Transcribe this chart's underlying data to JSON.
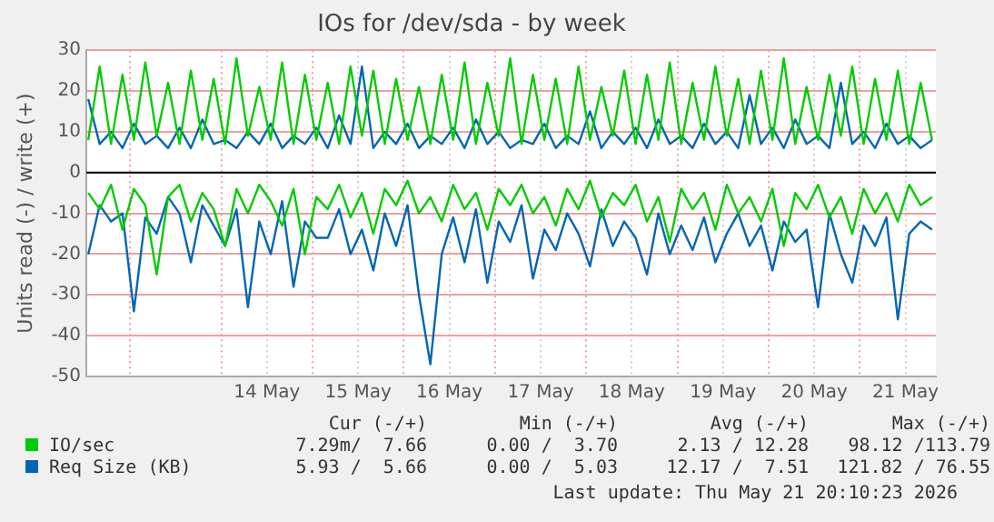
{
  "chart_data": {
    "type": "line",
    "title": "IOs for /dev/sda - by week",
    "ylabel": "Units read (-) / write (+)",
    "x": [
      "2026-05-12T13:00",
      "2026-05-12T16:00",
      "2026-05-12T19:00",
      "2026-05-12T22:00",
      "2026-05-13T01:00",
      "2026-05-13T04:00",
      "2026-05-13T07:00",
      "2026-05-13T10:00",
      "2026-05-13T13:00",
      "2026-05-13T16:00",
      "2026-05-13T19:00",
      "2026-05-13T22:00",
      "2026-05-14T01:00",
      "2026-05-14T04:00",
      "2026-05-14T07:00",
      "2026-05-14T10:00",
      "2026-05-14T13:00",
      "2026-05-14T16:00",
      "2026-05-14T19:00",
      "2026-05-14T22:00",
      "2026-05-15T01:00",
      "2026-05-15T04:00",
      "2026-05-15T07:00",
      "2026-05-15T10:00",
      "2026-05-15T13:00",
      "2026-05-15T16:00",
      "2026-05-15T19:00",
      "2026-05-15T22:00",
      "2026-05-16T01:00",
      "2026-05-16T04:00",
      "2026-05-16T07:00",
      "2026-05-16T10:00",
      "2026-05-16T13:00",
      "2026-05-16T16:00",
      "2026-05-16T19:00",
      "2026-05-16T22:00",
      "2026-05-17T01:00",
      "2026-05-17T04:00",
      "2026-05-17T07:00",
      "2026-05-17T10:00",
      "2026-05-17T13:00",
      "2026-05-17T16:00",
      "2026-05-17T19:00",
      "2026-05-17T22:00",
      "2026-05-18T01:00",
      "2026-05-18T04:00",
      "2026-05-18T07:00",
      "2026-05-18T10:00",
      "2026-05-18T13:00",
      "2026-05-18T16:00",
      "2026-05-18T19:00",
      "2026-05-18T22:00",
      "2026-05-19T01:00",
      "2026-05-19T04:00",
      "2026-05-19T07:00",
      "2026-05-19T10:00",
      "2026-05-19T13:00",
      "2026-05-19T16:00",
      "2026-05-19T19:00",
      "2026-05-19T22:00",
      "2026-05-20T01:00",
      "2026-05-20T04:00",
      "2026-05-20T07:00",
      "2026-05-20T10:00",
      "2026-05-20T13:00",
      "2026-05-20T16:00",
      "2026-05-20T19:00",
      "2026-05-20T22:00",
      "2026-05-21T01:00",
      "2026-05-21T04:00",
      "2026-05-21T07:00",
      "2026-05-21T10:00",
      "2026-05-21T13:00",
      "2026-05-21T16:00",
      "2026-05-21T19:00"
    ],
    "series": [
      {
        "name": "IO/sec",
        "color": "#00cc00",
        "values": [
          8,
          26,
          7,
          24,
          8,
          27,
          9,
          22,
          7,
          25,
          8,
          23,
          7,
          28,
          9,
          21,
          8,
          27,
          7,
          24,
          8,
          22,
          7,
          26,
          9,
          25,
          7,
          23,
          8,
          21,
          7,
          24,
          8,
          27,
          7,
          22,
          9,
          28,
          7,
          24,
          8,
          23,
          7,
          26,
          8,
          21,
          9,
          25,
          7,
          24,
          8,
          27,
          7,
          22,
          8,
          26,
          9,
          23,
          7,
          25,
          8,
          28,
          7,
          21,
          8,
          24,
          9,
          26,
          7,
          23,
          8,
          25,
          7,
          22,
          8
        ]
      },
      {
        "color": "#00cc00",
        "values": [
          -5,
          -9,
          -3,
          -14,
          -4,
          -8,
          -25,
          -6,
          -3,
          -12,
          -5,
          -9,
          -18,
          -4,
          -10,
          -3,
          -7,
          -13,
          -4,
          -20,
          -6,
          -9,
          -3,
          -11,
          -5,
          -15,
          -4,
          -8,
          -2,
          -10,
          -6,
          -12,
          -3,
          -9,
          -5,
          -14,
          -4,
          -8,
          -3,
          -10,
          -6,
          -13,
          -4,
          -9,
          -2,
          -11,
          -5,
          -8,
          -3,
          -12,
          -6,
          -17,
          -4,
          -9,
          -5,
          -14,
          -3,
          -10,
          -6,
          -12,
          -4,
          -18,
          -5,
          -9,
          -3,
          -11,
          -6,
          -15,
          -4,
          -10,
          -5,
          -12,
          -3,
          -8,
          -6
        ]
      },
      {
        "name": "Req Size (KB)",
        "color": "#0066b3",
        "values": [
          18,
          7,
          10,
          6,
          12,
          7,
          9,
          6,
          11,
          6,
          13,
          7,
          8,
          6,
          10,
          7,
          12,
          6,
          9,
          7,
          11,
          6,
          14,
          7,
          26,
          6,
          10,
          7,
          12,
          6,
          9,
          7,
          11,
          6,
          13,
          7,
          10,
          6,
          8,
          7,
          12,
          6,
          9,
          7,
          15,
          6,
          10,
          7,
          11,
          6,
          13,
          7,
          9,
          6,
          12,
          7,
          10,
          6,
          19,
          7,
          11,
          6,
          13,
          7,
          9,
          6,
          22,
          7,
          10,
          6,
          12,
          7,
          9,
          6,
          8
        ]
      },
      {
        "color": "#0066b3",
        "values": [
          -20,
          -8,
          -12,
          -10,
          -34,
          -11,
          -15,
          -6,
          -10,
          -22,
          -8,
          -13,
          -18,
          -9,
          -33,
          -12,
          -20,
          -7,
          -28,
          -12,
          -16,
          -16,
          -9,
          -20,
          -14,
          -24,
          -10,
          -18,
          -8,
          -30,
          -47,
          -20,
          -11,
          -22,
          -9,
          -27,
          -12,
          -17,
          -8,
          -26,
          -14,
          -19,
          -10,
          -15,
          -23,
          -9,
          -18,
          -12,
          -16,
          -25,
          -10,
          -20,
          -13,
          -19,
          -11,
          -22,
          -15,
          -10,
          -18,
          -13,
          -24,
          -12,
          -17,
          -14,
          -33,
          -10,
          -20,
          -27,
          -13,
          -18,
          -11,
          -36,
          -15,
          -12,
          -14
        ]
      }
    ],
    "xlim": [
      "2026-05-12T12:30",
      "2026-05-21T20:00"
    ],
    "xticks": [
      {
        "value": "2026-05-13T00:00",
        "label": null
      },
      {
        "value": "2026-05-14T00:00",
        "label": null
      },
      {
        "value": "2026-05-14T12:00",
        "label": "14 May"
      },
      {
        "value": "2026-05-15T00:00",
        "label": null
      },
      {
        "value": "2026-05-15T12:00",
        "label": "15 May"
      },
      {
        "value": "2026-05-16T00:00",
        "label": null
      },
      {
        "value": "2026-05-16T12:00",
        "label": "16 May"
      },
      {
        "value": "2026-05-17T00:00",
        "label": null
      },
      {
        "value": "2026-05-17T12:00",
        "label": "17 May"
      },
      {
        "value": "2026-05-18T00:00",
        "label": null
      },
      {
        "value": "2026-05-18T12:00",
        "label": "18 May"
      },
      {
        "value": "2026-05-19T00:00",
        "label": null
      },
      {
        "value": "2026-05-19T12:00",
        "label": "19 May"
      },
      {
        "value": "2026-05-20T00:00",
        "label": null
      },
      {
        "value": "2026-05-20T12:00",
        "label": "20 May"
      },
      {
        "value": "2026-05-21T00:00",
        "label": null
      },
      {
        "value": "2026-05-21T12:00",
        "label": "21 May"
      }
    ],
    "ylim": [
      -50,
      30
    ],
    "yticks": [
      -50,
      -40,
      -30,
      -20,
      -10,
      0,
      10,
      20,
      30
    ],
    "ref_lines": [
      {
        "axis": "y",
        "value": 0,
        "color": "#000000"
      }
    ],
    "grid": true,
    "legend": "bottom",
    "marker": "none",
    "line_style": "solid",
    "annotations": [
      "Cur (-/+)",
      "Min (-/+)",
      "Avg (-/+)",
      "Max (-/+)",
      "7.29m/  7.66",
      "0.00 /  3.70",
      "2.13 / 12.28",
      "98.12 /113.79",
      "5.93 /  5.66",
      "0.00 /  5.03",
      "12.17 /  7.51",
      "121.82 / 76.55",
      "Last update: Thu May 21 20:10:23 2026"
    ]
  }
}
